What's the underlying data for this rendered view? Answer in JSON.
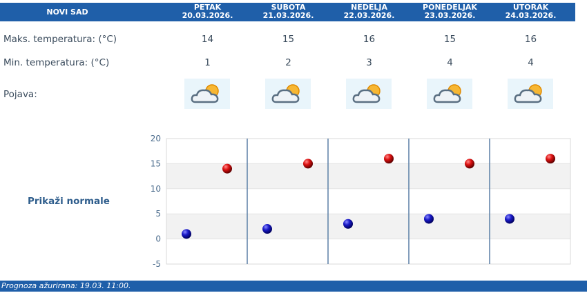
{
  "city": "NOVI SAD",
  "days": [
    {
      "name": "PETAK",
      "date": "20.03.2026.",
      "max": "14",
      "min": "1"
    },
    {
      "name": "SUBOTA",
      "date": "21.03.2026.",
      "max": "15",
      "min": "2"
    },
    {
      "name": "NEDELJA",
      "date": "22.03.2026.",
      "max": "16",
      "min": "3"
    },
    {
      "name": "PONEDELJAK",
      "date": "23.03.2026.",
      "max": "15",
      "min": "4"
    },
    {
      "name": "UTORAK",
      "date": "24.03.2026.",
      "max": "16",
      "min": "4"
    }
  ],
  "labels": {
    "max": "Maks. temperatura: (°C)",
    "min": "Min. temperatura: (°C)",
    "phenomenon": "Pojava:",
    "show_normals": "Prikaži normale"
  },
  "weather_icon": "partly-cloudy-icon",
  "footer": "Prognoza ažurirana:  19.03.  11:00.",
  "colors": {
    "header": "#1f5fa9",
    "max_point": "#cc0000",
    "min_point": "#1a1aaa"
  },
  "chart_data": {
    "type": "scatter",
    "ylim": [
      -5,
      20
    ],
    "yticks": [
      "20",
      "15",
      "10",
      "5",
      "0",
      "-5"
    ],
    "series": [
      {
        "values": [
          1,
          2,
          3,
          4,
          4
        ]
      },
      {
        "values": [
          14,
          15,
          16,
          15,
          16
        ]
      }
    ],
    "grid": true
  }
}
